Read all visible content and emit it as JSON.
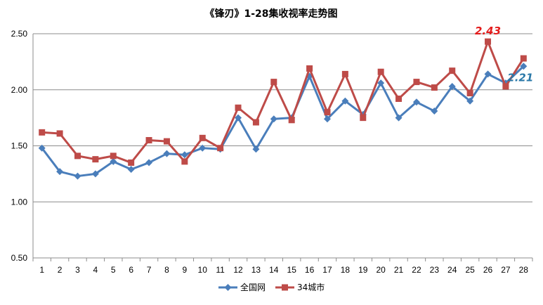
{
  "chart_data": {
    "type": "line",
    "title": "《锋刃》1-28集收视率走势图",
    "xlabel": "",
    "ylabel": "",
    "categories": [
      "1",
      "2",
      "3",
      "4",
      "5",
      "6",
      "7",
      "8",
      "9",
      "10",
      "11",
      "12",
      "13",
      "14",
      "15",
      "16",
      "17",
      "18",
      "19",
      "20",
      "21",
      "22",
      "23",
      "24",
      "25",
      "26",
      "27",
      "28"
    ],
    "ylim": [
      0.5,
      2.5
    ],
    "yticks": [
      "0.50",
      "1.00",
      "1.50",
      "2.00",
      "2.50"
    ],
    "grid": true,
    "legend_position": "bottom",
    "series": [
      {
        "name": "全国网",
        "color": "#4a7ebb",
        "marker": "diamond",
        "values": [
          1.48,
          1.27,
          1.23,
          1.25,
          1.36,
          1.29,
          1.35,
          1.43,
          1.42,
          1.48,
          1.47,
          1.75,
          1.47,
          1.74,
          1.75,
          2.12,
          1.74,
          1.9,
          1.78,
          2.06,
          1.75,
          1.89,
          1.81,
          2.03,
          1.9,
          2.14,
          2.06,
          2.21
        ]
      },
      {
        "name": "34城市",
        "color": "#be4b48",
        "marker": "square",
        "values": [
          1.62,
          1.61,
          1.41,
          1.38,
          1.41,
          1.35,
          1.55,
          1.54,
          1.36,
          1.57,
          1.48,
          1.84,
          1.71,
          2.07,
          1.73,
          2.19,
          1.8,
          2.14,
          1.75,
          2.16,
          1.92,
          2.07,
          2.02,
          2.17,
          1.97,
          2.43,
          2.03,
          2.28
        ]
      }
    ],
    "annotations": [
      {
        "text": "2.43",
        "color": "#e31b1b",
        "series": "34城市",
        "category": "26"
      },
      {
        "text": "2.21",
        "color": "#2a78a8",
        "series": "全国网",
        "category": "28"
      }
    ]
  }
}
